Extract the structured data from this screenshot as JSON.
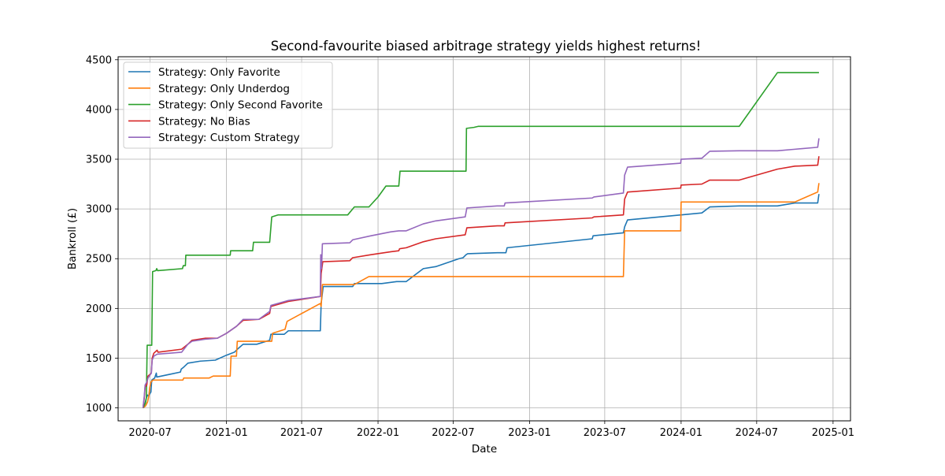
{
  "chart_data": {
    "type": "line",
    "title": "Second-favourite biased arbitrage strategy yields highest returns!",
    "xlabel": "Date",
    "ylabel": "Bankroll (£)",
    "xlim": [
      "2020-04-15",
      "2025-02-12"
    ],
    "ylim": [
      870,
      4530
    ],
    "grid": true,
    "legend_position": "top-left",
    "x_ticks": [
      "2020-07-01",
      "2021-01-01",
      "2021-07-01",
      "2022-01-01",
      "2022-07-01",
      "2023-01-01",
      "2023-07-01",
      "2024-01-01",
      "2024-07-01",
      "2025-01-01"
    ],
    "x_tick_labels": [
      "2020-07",
      "2021-01",
      "2021-07",
      "2022-01",
      "2022-07",
      "2023-01",
      "2023-07",
      "2024-01",
      "2024-07",
      "2025-01"
    ],
    "y_ticks": [
      1000,
      1500,
      2000,
      2500,
      3000,
      3500,
      4000,
      4500
    ],
    "y_tick_labels": [
      "1000",
      "1500",
      "2000",
      "2500",
      "3000",
      "3500",
      "4000",
      "4500"
    ],
    "series": [
      {
        "name": "Strategy: Only Favorite",
        "color": "#1f77b4",
        "points": [
          [
            "2020-06-14",
            1000
          ],
          [
            "2020-06-19",
            1050
          ],
          [
            "2020-06-22",
            1100
          ],
          [
            "2020-06-25",
            1130
          ],
          [
            "2020-06-27",
            1120
          ],
          [
            "2020-07-03",
            1160
          ],
          [
            "2020-07-05",
            1280
          ],
          [
            "2020-07-12",
            1300
          ],
          [
            "2020-07-16",
            1350
          ],
          [
            "2020-07-17",
            1310
          ],
          [
            "2020-08-20",
            1340
          ],
          [
            "2020-09-12",
            1360
          ],
          [
            "2020-09-14",
            1390
          ],
          [
            "2020-09-20",
            1410
          ],
          [
            "2020-09-30",
            1450
          ],
          [
            "2020-10-30",
            1470
          ],
          [
            "2020-12-05",
            1480
          ],
          [
            "2021-01-01",
            1530
          ],
          [
            "2021-01-20",
            1560
          ],
          [
            "2021-01-30",
            1600
          ],
          [
            "2021-02-10",
            1640
          ],
          [
            "2021-03-15",
            1640
          ],
          [
            "2021-04-15",
            1680
          ],
          [
            "2021-04-18",
            1740
          ],
          [
            "2021-05-20",
            1740
          ],
          [
            "2021-05-30",
            1775
          ],
          [
            "2021-08-15",
            1775
          ],
          [
            "2021-08-17",
            2050
          ],
          [
            "2021-08-22",
            2220
          ],
          [
            "2021-11-01",
            2220
          ],
          [
            "2021-11-05",
            2250
          ],
          [
            "2022-01-10",
            2250
          ],
          [
            "2022-02-15",
            2270
          ],
          [
            "2022-03-10",
            2270
          ],
          [
            "2022-04-20",
            2400
          ],
          [
            "2022-05-20",
            2420
          ],
          [
            "2022-07-15",
            2500
          ],
          [
            "2022-07-25",
            2510
          ],
          [
            "2022-08-01",
            2540
          ],
          [
            "2022-08-05",
            2550
          ],
          [
            "2022-10-15",
            2560
          ],
          [
            "2022-11-05",
            2560
          ],
          [
            "2022-11-08",
            2610
          ],
          [
            "2023-06-01",
            2700
          ],
          [
            "2023-06-03",
            2730
          ],
          [
            "2023-08-15",
            2760
          ],
          [
            "2023-08-18",
            2820
          ],
          [
            "2023-08-25",
            2890
          ],
          [
            "2024-01-01",
            2940
          ],
          [
            "2024-02-20",
            2960
          ],
          [
            "2024-03-10",
            3020
          ],
          [
            "2024-05-20",
            3030
          ],
          [
            "2024-08-20",
            3030
          ],
          [
            "2024-10-01",
            3060
          ],
          [
            "2024-11-25",
            3060
          ],
          [
            "2024-11-28",
            3150
          ]
        ]
      },
      {
        "name": "Strategy: Only Underdog",
        "color": "#ff7f0e",
        "points": [
          [
            "2020-06-14",
            1000
          ],
          [
            "2020-06-20",
            1020
          ],
          [
            "2020-06-25",
            1060
          ],
          [
            "2020-06-28",
            1120
          ],
          [
            "2020-06-30",
            1200
          ],
          [
            "2020-07-03",
            1260
          ],
          [
            "2020-07-08",
            1280
          ],
          [
            "2020-09-18",
            1280
          ],
          [
            "2020-09-20",
            1300
          ],
          [
            "2020-11-20",
            1300
          ],
          [
            "2020-11-30",
            1320
          ],
          [
            "2021-01-10",
            1320
          ],
          [
            "2021-01-12",
            1520
          ],
          [
            "2021-01-25",
            1520
          ],
          [
            "2021-01-27",
            1670
          ],
          [
            "2021-04-20",
            1670
          ],
          [
            "2021-04-22",
            1750
          ],
          [
            "2021-05-22",
            1790
          ],
          [
            "2021-05-27",
            1870
          ],
          [
            "2021-08-15",
            2050
          ],
          [
            "2021-08-17",
            2020
          ],
          [
            "2021-08-20",
            2240
          ],
          [
            "2021-11-05",
            2240
          ],
          [
            "2021-12-10",
            2320
          ],
          [
            "2023-08-15",
            2320
          ],
          [
            "2023-08-18",
            2780
          ],
          [
            "2023-12-31",
            2780
          ],
          [
            "2024-01-01",
            3070
          ],
          [
            "2024-10-01",
            3070
          ],
          [
            "2024-11-25",
            3170
          ],
          [
            "2024-11-28",
            3260
          ]
        ]
      },
      {
        "name": "Strategy: Only Second Favorite",
        "color": "#2ca02c",
        "points": [
          [
            "2020-06-14",
            1000
          ],
          [
            "2020-06-20",
            1050
          ],
          [
            "2020-06-22",
            1100
          ],
          [
            "2020-06-24",
            1630
          ],
          [
            "2020-07-05",
            1630
          ],
          [
            "2020-07-07",
            2370
          ],
          [
            "2020-07-15",
            2380
          ],
          [
            "2020-07-17",
            2400
          ],
          [
            "2020-07-19",
            2380
          ],
          [
            "2020-09-17",
            2400
          ],
          [
            "2020-09-19",
            2430
          ],
          [
            "2020-09-24",
            2430
          ],
          [
            "2020-09-25",
            2535
          ],
          [
            "2021-01-10",
            2535
          ],
          [
            "2021-01-11",
            2580
          ],
          [
            "2021-03-05",
            2580
          ],
          [
            "2021-03-07",
            2665
          ],
          [
            "2021-04-15",
            2665
          ],
          [
            "2021-04-20",
            2920
          ],
          [
            "2021-05-05",
            2940
          ],
          [
            "2021-10-20",
            2940
          ],
          [
            "2021-11-05",
            3020
          ],
          [
            "2021-12-10",
            3020
          ],
          [
            "2022-01-01",
            3120
          ],
          [
            "2022-01-20",
            3230
          ],
          [
            "2022-02-20",
            3230
          ],
          [
            "2022-02-23",
            3380
          ],
          [
            "2022-08-01",
            3380
          ],
          [
            "2022-08-02",
            3810
          ],
          [
            "2022-08-20",
            3820
          ],
          [
            "2022-08-30",
            3830
          ],
          [
            "2024-05-20",
            3830
          ],
          [
            "2024-08-20",
            4370
          ],
          [
            "2024-11-28",
            4370
          ]
        ]
      },
      {
        "name": "Strategy: No Bias",
        "color": "#d62728",
        "points": [
          [
            "2020-06-14",
            1000
          ],
          [
            "2020-06-17",
            1100
          ],
          [
            "2020-06-19",
            1210
          ],
          [
            "2020-06-23",
            1230
          ],
          [
            "2020-06-26",
            1320
          ],
          [
            "2020-07-04",
            1350
          ],
          [
            "2020-07-06",
            1500
          ],
          [
            "2020-07-10",
            1550
          ],
          [
            "2020-07-18",
            1580
          ],
          [
            "2020-07-20",
            1560
          ],
          [
            "2020-09-15",
            1590
          ],
          [
            "2020-09-30",
            1640
          ],
          [
            "2020-10-10",
            1680
          ],
          [
            "2020-11-10",
            1700
          ],
          [
            "2020-12-10",
            1700
          ],
          [
            "2021-01-01",
            1750
          ],
          [
            "2021-01-25",
            1820
          ],
          [
            "2021-02-10",
            1880
          ],
          [
            "2021-03-20",
            1890
          ],
          [
            "2021-04-15",
            1950
          ],
          [
            "2021-04-18",
            2020
          ],
          [
            "2021-05-30",
            2070
          ],
          [
            "2021-08-15",
            2120
          ],
          [
            "2021-08-17",
            2350
          ],
          [
            "2021-08-21",
            2470
          ],
          [
            "2021-10-25",
            2480
          ],
          [
            "2021-11-01",
            2510
          ],
          [
            "2021-12-15",
            2540
          ],
          [
            "2022-02-01",
            2570
          ],
          [
            "2022-02-20",
            2580
          ],
          [
            "2022-02-22",
            2600
          ],
          [
            "2022-03-10",
            2610
          ],
          [
            "2022-04-20",
            2670
          ],
          [
            "2022-05-20",
            2700
          ],
          [
            "2022-07-30",
            2740
          ],
          [
            "2022-08-03",
            2810
          ],
          [
            "2022-10-15",
            2830
          ],
          [
            "2022-11-01",
            2830
          ],
          [
            "2022-11-03",
            2860
          ],
          [
            "2023-06-01",
            2910
          ],
          [
            "2023-06-05",
            2920
          ],
          [
            "2023-08-15",
            2940
          ],
          [
            "2023-08-18",
            3100
          ],
          [
            "2023-08-25",
            3170
          ],
          [
            "2023-12-31",
            3210
          ],
          [
            "2024-01-01",
            3240
          ],
          [
            "2024-02-20",
            3250
          ],
          [
            "2024-03-10",
            3290
          ],
          [
            "2024-05-20",
            3290
          ],
          [
            "2024-08-20",
            3400
          ],
          [
            "2024-10-01",
            3430
          ],
          [
            "2024-11-25",
            3440
          ],
          [
            "2024-11-28",
            3530
          ]
        ]
      },
      {
        "name": "Strategy: Custom Strategy",
        "color": "#9467bd",
        "points": [
          [
            "2020-06-14",
            1000
          ],
          [
            "2020-06-17",
            1120
          ],
          [
            "2020-06-19",
            1230
          ],
          [
            "2020-06-23",
            1260
          ],
          [
            "2020-06-26",
            1300
          ],
          [
            "2020-07-04",
            1350
          ],
          [
            "2020-07-06",
            1480
          ],
          [
            "2020-07-10",
            1520
          ],
          [
            "2020-07-18",
            1540
          ],
          [
            "2020-09-15",
            1560
          ],
          [
            "2020-09-30",
            1640
          ],
          [
            "2020-10-10",
            1670
          ],
          [
            "2020-11-10",
            1690
          ],
          [
            "2020-12-10",
            1700
          ],
          [
            "2021-01-01",
            1750
          ],
          [
            "2021-01-25",
            1820
          ],
          [
            "2021-02-10",
            1890
          ],
          [
            "2021-03-20",
            1890
          ],
          [
            "2021-04-15",
            1970
          ],
          [
            "2021-04-18",
            2030
          ],
          [
            "2021-05-30",
            2080
          ],
          [
            "2021-08-15",
            2120
          ],
          [
            "2021-08-16",
            2540
          ],
          [
            "2021-08-18",
            2400
          ],
          [
            "2021-08-20",
            2650
          ],
          [
            "2021-10-25",
            2660
          ],
          [
            "2021-11-01",
            2690
          ],
          [
            "2021-12-15",
            2730
          ],
          [
            "2022-02-01",
            2770
          ],
          [
            "2022-02-20",
            2780
          ],
          [
            "2022-03-10",
            2780
          ],
          [
            "2022-04-20",
            2850
          ],
          [
            "2022-05-20",
            2880
          ],
          [
            "2022-07-30",
            2920
          ],
          [
            "2022-08-03",
            3010
          ],
          [
            "2022-10-15",
            3030
          ],
          [
            "2022-11-01",
            3030
          ],
          [
            "2022-11-03",
            3060
          ],
          [
            "2023-06-01",
            3110
          ],
          [
            "2023-06-05",
            3120
          ],
          [
            "2023-08-15",
            3160
          ],
          [
            "2023-08-18",
            3340
          ],
          [
            "2023-08-25",
            3420
          ],
          [
            "2023-12-31",
            3460
          ],
          [
            "2024-01-01",
            3500
          ],
          [
            "2024-02-20",
            3510
          ],
          [
            "2024-03-10",
            3580
          ],
          [
            "2024-05-20",
            3585
          ],
          [
            "2024-08-20",
            3585
          ],
          [
            "2024-10-01",
            3600
          ],
          [
            "2024-11-25",
            3620
          ],
          [
            "2024-11-28",
            3710
          ]
        ]
      }
    ]
  }
}
